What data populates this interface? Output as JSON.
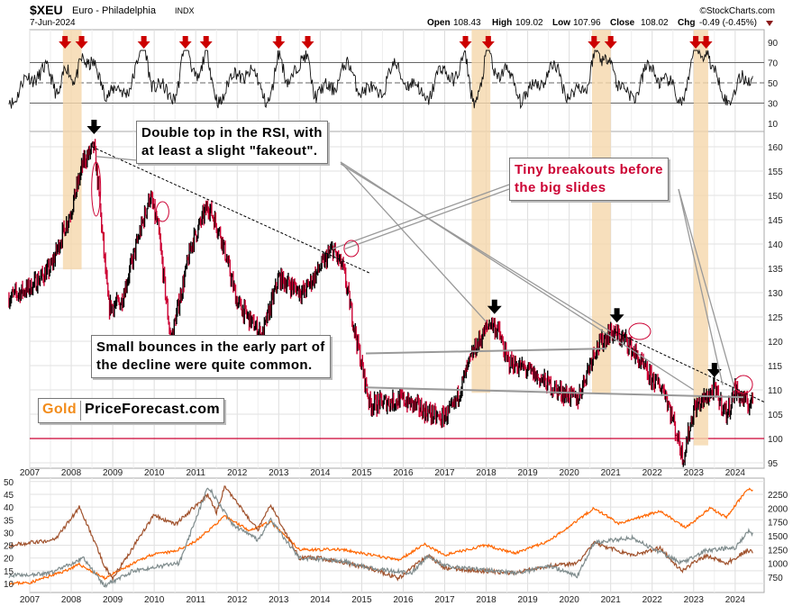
{
  "header": {
    "symbol": "$XEU",
    "name": "Euro - Philadelphia",
    "exchange": "INDX",
    "date": "7-Jun-2024",
    "source": "©StockCharts.com",
    "open_label": "Open",
    "open": "108.43",
    "high_label": "High",
    "high": "109.02",
    "low_label": "Low",
    "low": "107.96",
    "close_label": "Close",
    "close": "108.02",
    "chg_label": "Chg",
    "chg": "-0.49 (-0.45%)"
  },
  "annotations": {
    "double_top": [
      "Double top in the RSI, with",
      "at least a slight \"fakeout\"."
    ],
    "small_bounces": [
      "Small bounces in the early part of",
      "the decline were quite common."
    ],
    "tiny_breakouts": [
      "Tiny breakouts before",
      "the big slides"
    ]
  },
  "logo": {
    "part1": "Gold",
    "part2": "PriceForecast.com"
  },
  "colors": {
    "up": "#000000",
    "down": "#cc0033",
    "band": "#f5d7ab",
    "gold": "#ff6600",
    "silver": "#a0522d",
    "gray": "#7f8c8d",
    "arrow_red": "#cc0000",
    "level_line": "#cc0033"
  },
  "chart_data": [
    {
      "type": "line",
      "panel": "rsi",
      "yticks": [
        90,
        70,
        50,
        30,
        10
      ],
      "ylim": [
        0,
        100
      ],
      "reference_lines": [
        70,
        50,
        30
      ],
      "overbought_arrows_years": [
        2007.85,
        2008.25,
        2009.75,
        2010.75,
        2011.25,
        2013.0,
        2013.7,
        2017.5,
        2018.05,
        2020.6,
        2021.0,
        2023.05,
        2023.3
      ]
    },
    {
      "type": "candlestick",
      "panel": "price",
      "yticks": [
        160,
        155,
        150,
        145,
        140,
        135,
        130,
        125,
        120,
        115,
        110,
        105,
        100,
        95
      ],
      "ylim": [
        95,
        160
      ],
      "xticks": [
        "2007",
        "2008",
        "2009",
        "2010",
        "2011",
        "2012",
        "2013",
        "2014",
        "2015",
        "2016",
        "2017",
        "2018",
        "2019",
        "2020",
        "2021",
        "2022",
        "2023",
        "2024"
      ],
      "horizontal_level": 100,
      "highlight_ranges": [
        [
          2007.8,
          2008.25
        ],
        [
          2017.65,
          2018.1
        ],
        [
          2020.55,
          2021.0
        ],
        [
          2023.0,
          2023.35
        ]
      ],
      "top_arrows_years": [
        2008.55,
        2018.2,
        2021.15,
        2023.5
      ],
      "key_points": [
        [
          2006.5,
          129
        ],
        [
          2007.0,
          131
        ],
        [
          2007.5,
          135
        ],
        [
          2008.0,
          147
        ],
        [
          2008.3,
          157
        ],
        [
          2008.55,
          160
        ],
        [
          2008.65,
          152
        ],
        [
          2008.9,
          127
        ],
        [
          2009.2,
          128
        ],
        [
          2009.9,
          150
        ],
        [
          2010.1,
          143
        ],
        [
          2010.4,
          120
        ],
        [
          2010.9,
          140
        ],
        [
          2011.3,
          148
        ],
        [
          2011.6,
          142
        ],
        [
          2012.0,
          128
        ],
        [
          2012.6,
          121
        ],
        [
          2013.0,
          133
        ],
        [
          2013.6,
          130
        ],
        [
          2014.3,
          139
        ],
        [
          2014.55,
          135
        ],
        [
          2015.0,
          115
        ],
        [
          2015.2,
          107
        ],
        [
          2016.0,
          108
        ],
        [
          2016.9,
          104
        ],
        [
          2017.2,
          106
        ],
        [
          2017.7,
          118
        ],
        [
          2018.1,
          124
        ],
        [
          2018.3,
          122
        ],
        [
          2018.5,
          116
        ],
        [
          2019.0,
          114
        ],
        [
          2019.7,
          110
        ],
        [
          2020.2,
          108
        ],
        [
          2020.6,
          118
        ],
        [
          2021.0,
          122
        ],
        [
          2021.4,
          120
        ],
        [
          2021.9,
          113
        ],
        [
          2022.3,
          110
        ],
        [
          2022.75,
          96
        ],
        [
          2023.0,
          106
        ],
        [
          2023.5,
          110
        ],
        [
          2023.8,
          105
        ],
        [
          2024.0,
          110
        ],
        [
          2024.3,
          107
        ],
        [
          2024.44,
          108.02
        ]
      ]
    },
    {
      "type": "line",
      "panel": "comparison",
      "left_yticks": [
        50,
        45,
        40,
        35,
        30,
        25,
        20,
        15,
        10
      ],
      "right_yticks": [
        2250,
        2000,
        1750,
        1500,
        1250,
        1000,
        750
      ],
      "series": [
        {
          "axis": "right",
          "color": "#ff6600",
          "key_points": [
            [
              2006.5,
              640
            ],
            [
              2007.0,
              650
            ],
            [
              2007.8,
              850
            ],
            [
              2008.2,
              980
            ],
            [
              2008.8,
              730
            ],
            [
              2009.9,
              1150
            ],
            [
              2010.5,
              1220
            ],
            [
              2011.0,
              1400
            ],
            [
              2011.7,
              1850
            ],
            [
              2012.3,
              1600
            ],
            [
              2012.8,
              1750
            ],
            [
              2013.5,
              1250
            ],
            [
              2014.5,
              1250
            ],
            [
              2015.9,
              1060
            ],
            [
              2016.5,
              1350
            ],
            [
              2017.0,
              1150
            ],
            [
              2018.0,
              1330
            ],
            [
              2018.7,
              1180
            ],
            [
              2019.5,
              1400
            ],
            [
              2020.6,
              2000
            ],
            [
              2021.2,
              1720
            ],
            [
              2022.2,
              1950
            ],
            [
              2022.8,
              1640
            ],
            [
              2023.4,
              2000
            ],
            [
              2023.8,
              1830
            ],
            [
              2024.0,
              2050
            ],
            [
              2024.3,
              2350
            ],
            [
              2024.44,
              2310
            ]
          ]
        },
        {
          "axis": "left",
          "color": "#a0522d",
          "key_points": [
            [
              2006.5,
              25
            ],
            [
              2007.0,
              26
            ],
            [
              2007.6,
              27
            ],
            [
              2008.2,
              40
            ],
            [
              2008.8,
              17
            ],
            [
              2009.0,
              12
            ],
            [
              2010.0,
              37
            ],
            [
              2010.5,
              33
            ],
            [
              2011.3,
              45
            ],
            [
              2011.5,
              38
            ],
            [
              2011.7,
              48
            ],
            [
              2012.5,
              31
            ],
            [
              2012.8,
              41
            ],
            [
              2013.5,
              20
            ],
            [
              2014.0,
              20
            ],
            [
              2015.2,
              16
            ],
            [
              2015.9,
              12
            ],
            [
              2016.6,
              21
            ],
            [
              2017.0,
              16
            ],
            [
              2018.7,
              14
            ],
            [
              2019.5,
              17
            ],
            [
              2020.2,
              18
            ],
            [
              2020.6,
              26
            ],
            [
              2021.5,
              21
            ],
            [
              2022.2,
              24
            ],
            [
              2022.7,
              15
            ],
            [
              2023.3,
              21
            ],
            [
              2023.8,
              18
            ],
            [
              2024.3,
              23
            ],
            [
              2024.44,
              22
            ]
          ]
        },
        {
          "axis": "left",
          "color": "#7f8c8d",
          "key_points": [
            [
              2006.5,
              13
            ],
            [
              2007.5,
              14
            ],
            [
              2008.3,
              20
            ],
            [
              2008.8,
              9
            ],
            [
              2009.5,
              15
            ],
            [
              2010.6,
              18
            ],
            [
              2011.3,
              48
            ],
            [
              2011.9,
              33
            ],
            [
              2012.5,
              27
            ],
            [
              2012.8,
              35
            ],
            [
              2013.5,
              20
            ],
            [
              2014.5,
              19
            ],
            [
              2015.2,
              16
            ],
            [
              2016.2,
              14
            ],
            [
              2016.6,
              21
            ],
            [
              2017.0,
              17
            ],
            [
              2018.8,
              14
            ],
            [
              2019.5,
              17
            ],
            [
              2020.2,
              13
            ],
            [
              2020.6,
              26
            ],
            [
              2021.5,
              28
            ],
            [
              2022.7,
              18
            ],
            [
              2023.3,
              23
            ],
            [
              2024.0,
              24
            ],
            [
              2024.35,
              31
            ],
            [
              2024.44,
              29
            ]
          ]
        }
      ]
    }
  ]
}
